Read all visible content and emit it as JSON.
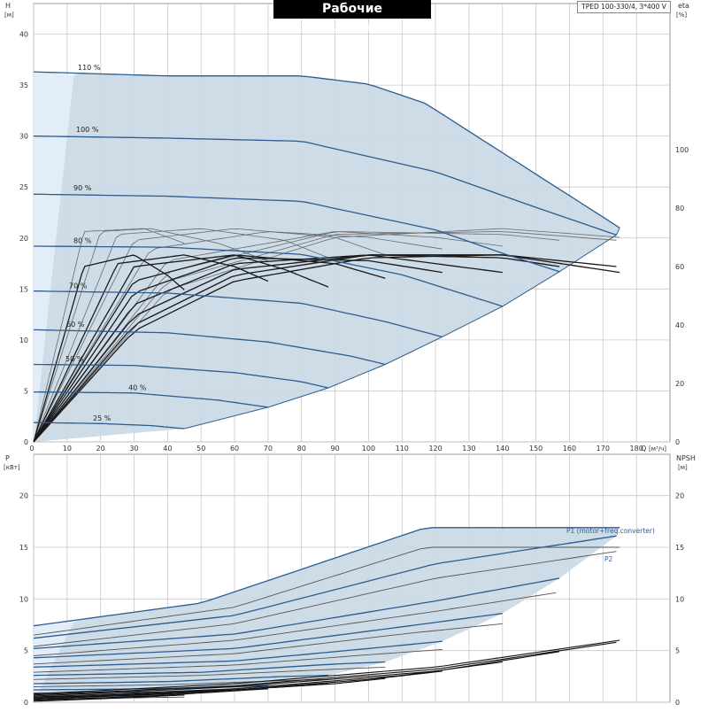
{
  "header": {
    "title": "Рабочие характеристики",
    "model": "TPED 100-330/4, 3*400 V"
  },
  "colors": {
    "region_fill": "#c9d8e6",
    "region_edge": "#2f5f8f",
    "speed_curve": "#2d5c8f",
    "efficiency_curve": "#1a1a1a",
    "grid": "#c8c8c8",
    "label_text": "#2a5d9a"
  },
  "chart_data": [
    {
      "type": "line",
      "name": "head",
      "ylabel_top": "H",
      "yunit": "[м]",
      "xlabel": "Q",
      "xunit": "[м³/ч]",
      "xlim": [
        0,
        190
      ],
      "ylim": [
        0,
        43
      ],
      "xticks": [
        0,
        10,
        20,
        30,
        40,
        50,
        60,
        70,
        80,
        90,
        100,
        110,
        120,
        130,
        140,
        150,
        160,
        170,
        180
      ],
      "yticks": [
        0,
        5,
        10,
        15,
        20,
        25,
        30,
        35,
        40
      ],
      "right_axis": {
        "label": "eta",
        "unit": "[%]",
        "ticks": [
          0,
          20,
          40,
          60,
          80,
          100
        ],
        "lim": [
          0,
          150
        ]
      },
      "curve_labels": [
        "110 %",
        "100 %",
        "90 %",
        "80 %",
        "70 %",
        "60 %",
        "50 %",
        "40 %",
        "25 %"
      ],
      "series": [
        {
          "speed": 110,
          "x": [
            0,
            40,
            80,
            100,
            117,
            175
          ],
          "y": [
            36.3,
            35.9,
            35.9,
            35.1,
            33.2,
            21.0
          ]
        },
        {
          "speed": 100,
          "x": [
            0,
            40,
            80,
            120,
            150,
            174
          ],
          "y": [
            30.0,
            29.8,
            29.5,
            26.5,
            23.0,
            20.3
          ]
        },
        {
          "speed": 90,
          "x": [
            0,
            40,
            80,
            120,
            140,
            157
          ],
          "y": [
            24.3,
            24.1,
            23.6,
            20.8,
            18.5,
            16.7
          ]
        },
        {
          "speed": 80,
          "x": [
            0,
            40,
            80,
            110,
            140
          ],
          "y": [
            19.2,
            19.1,
            18.4,
            16.4,
            13.3
          ]
        },
        {
          "speed": 70,
          "x": [
            0,
            40,
            80,
            105,
            122
          ],
          "y": [
            14.8,
            14.6,
            13.6,
            11.8,
            10.3
          ]
        },
        {
          "speed": 60,
          "x": [
            0,
            40,
            70,
            95,
            105
          ],
          "y": [
            11.0,
            10.7,
            9.8,
            8.4,
            7.6
          ]
        },
        {
          "speed": 50,
          "x": [
            0,
            30,
            60,
            80,
            88
          ],
          "y": [
            7.6,
            7.5,
            6.8,
            5.9,
            5.3
          ]
        },
        {
          "speed": 40,
          "x": [
            0,
            30,
            55,
            70
          ],
          "y": [
            4.9,
            4.8,
            4.1,
            3.4
          ]
        },
        {
          "speed": 25,
          "x": [
            0,
            20,
            35,
            45
          ],
          "y": [
            1.9,
            1.8,
            1.6,
            1.3
          ]
        }
      ],
      "efficiency_curves": [
        {
          "speed": 110,
          "x": [
            0,
            30,
            60,
            100,
            140,
            175
          ],
          "eta": [
            0,
            38,
            55,
            63,
            64,
            58
          ]
        },
        {
          "speed": 100,
          "x": [
            0,
            30,
            60,
            100,
            140,
            174
          ],
          "eta": [
            0,
            40,
            57,
            64,
            64,
            60
          ]
        },
        {
          "speed": 90,
          "x": [
            0,
            30,
            60,
            100,
            140,
            157
          ],
          "eta": [
            0,
            43,
            59,
            64,
            63,
            60
          ]
        },
        {
          "speed": 80,
          "x": [
            0,
            30,
            60,
            100,
            140
          ],
          "eta": [
            0,
            47,
            61,
            64,
            58
          ]
        },
        {
          "speed": 70,
          "x": [
            0,
            30,
            60,
            100,
            122
          ],
          "eta": [
            0,
            51,
            63,
            62,
            58
          ]
        },
        {
          "speed": 60,
          "x": [
            0,
            30,
            60,
            90,
            105
          ],
          "eta": [
            0,
            55,
            64,
            61,
            56
          ]
        },
        {
          "speed": 50,
          "x": [
            0,
            30,
            60,
            75,
            88
          ],
          "eta": [
            0,
            60,
            64,
            59,
            53
          ]
        },
        {
          "speed": 40,
          "x": [
            0,
            25,
            45,
            60,
            70
          ],
          "eta": [
            0,
            61,
            64,
            60,
            55
          ]
        },
        {
          "speed": 25,
          "x": [
            0,
            15,
            30,
            40,
            45
          ],
          "eta": [
            0,
            60,
            64,
            57,
            52
          ]
        }
      ],
      "p1_efficiency_curves": [
        {
          "speed": 110,
          "x": [
            0,
            40,
            90,
            140,
            175
          ],
          "eta": [
            0,
            52,
            70,
            73,
            70
          ]
        },
        {
          "speed": 100,
          "x": [
            0,
            40,
            90,
            140,
            174
          ],
          "eta": [
            0,
            55,
            71,
            72,
            69
          ]
        },
        {
          "speed": 90,
          "x": [
            0,
            40,
            90,
            140,
            157
          ],
          "eta": [
            0,
            58,
            72,
            71,
            69
          ]
        },
        {
          "speed": 80,
          "x": [
            0,
            40,
            90,
            120,
            140
          ],
          "eta": [
            0,
            62,
            72,
            70,
            67
          ]
        },
        {
          "speed": 70,
          "x": [
            0,
            35,
            70,
            100,
            122
          ],
          "eta": [
            0,
            66,
            72,
            70,
            66
          ]
        },
        {
          "speed": 60,
          "x": [
            0,
            30,
            60,
            90,
            105
          ],
          "eta": [
            0,
            69,
            73,
            70,
            64
          ]
        },
        {
          "speed": 50,
          "x": [
            0,
            25,
            50,
            75,
            88
          ],
          "eta": [
            0,
            71,
            73,
            69,
            63
          ]
        },
        {
          "speed": 40,
          "x": [
            0,
            20,
            35,
            55,
            70
          ],
          "eta": [
            0,
            72,
            73,
            68,
            62
          ]
        },
        {
          "speed": 25,
          "x": [
            0,
            15,
            33,
            45
          ],
          "eta": [
            0,
            72,
            73,
            68
          ]
        }
      ]
    },
    {
      "type": "line",
      "name": "power",
      "ylabel_top": "P",
      "yunit": "[кВт]",
      "xlim": [
        0,
        190
      ],
      "ylim": [
        0,
        24
      ],
      "yticks": [
        0,
        5,
        10,
        15,
        20
      ],
      "right_axis": {
        "label": "NPSH",
        "unit": "[м]",
        "ticks": [
          0,
          5,
          10,
          15,
          20
        ],
        "lim": [
          0,
          24
        ]
      },
      "legend": [
        "P1 (motor+freq.converter)",
        "P2"
      ],
      "series_p1": [
        {
          "speed": 110,
          "x": [
            0,
            50,
            117,
            175
          ],
          "y": [
            7.4,
            9.6,
            16.9,
            16.9
          ]
        },
        {
          "speed": 100,
          "x": [
            0,
            60,
            120,
            174
          ],
          "y": [
            6.2,
            8.4,
            13.4,
            16.1
          ]
        },
        {
          "speed": 90,
          "x": [
            0,
            60,
            120,
            157
          ],
          "y": [
            5.2,
            6.6,
            9.8,
            12.0
          ]
        },
        {
          "speed": 80,
          "x": [
            0,
            60,
            110,
            140
          ],
          "y": [
            4.3,
            5.2,
            7.3,
            8.6
          ]
        },
        {
          "speed": 70,
          "x": [
            0,
            60,
            100,
            122
          ],
          "y": [
            3.4,
            4.0,
            5.2,
            5.9
          ]
        },
        {
          "speed": 60,
          "x": [
            0,
            50,
            90,
            105
          ],
          "y": [
            2.6,
            2.9,
            3.7,
            3.9
          ]
        },
        {
          "speed": 50,
          "x": [
            0,
            40,
            75,
            88
          ],
          "y": [
            1.8,
            2.0,
            2.5,
            2.6
          ]
        },
        {
          "speed": 40,
          "x": [
            0,
            35,
            60,
            70
          ],
          "y": [
            1.2,
            1.3,
            1.5,
            1.6
          ]
        },
        {
          "speed": 25,
          "x": [
            0,
            25,
            45
          ],
          "y": [
            0.5,
            0.6,
            0.7
          ]
        }
      ],
      "series_p2": [
        {
          "speed": 110,
          "x": [
            0,
            60,
            117,
            175
          ],
          "y": [
            6.5,
            9.2,
            15.0,
            15.0
          ]
        },
        {
          "speed": 100,
          "x": [
            0,
            60,
            120,
            174
          ],
          "y": [
            5.4,
            7.6,
            12.0,
            14.6
          ]
        },
        {
          "speed": 90,
          "x": [
            0,
            60,
            120,
            156
          ],
          "y": [
            4.5,
            6.0,
            8.8,
            10.6
          ]
        },
        {
          "speed": 80,
          "x": [
            0,
            60,
            110,
            140
          ],
          "y": [
            3.7,
            4.7,
            6.6,
            7.6
          ]
        },
        {
          "speed": 70,
          "x": [
            0,
            60,
            100,
            122
          ],
          "y": [
            2.9,
            3.6,
            4.6,
            5.1
          ]
        },
        {
          "speed": 60,
          "x": [
            0,
            50,
            90,
            105
          ],
          "y": [
            2.2,
            2.6,
            3.2,
            3.4
          ]
        },
        {
          "speed": 50,
          "x": [
            0,
            40,
            75,
            88
          ],
          "y": [
            1.5,
            1.7,
            2.1,
            2.2
          ]
        },
        {
          "speed": 40,
          "x": [
            0,
            35,
            60,
            70
          ],
          "y": [
            0.9,
            1.0,
            1.2,
            1.3
          ]
        },
        {
          "speed": 25,
          "x": [
            0,
            25,
            45
          ],
          "y": [
            0.3,
            0.4,
            0.5
          ]
        }
      ],
      "npsh_curves": [
        {
          "speed": 110,
          "x": [
            0,
            60,
            120,
            175
          ],
          "y": [
            0.8,
            1.8,
            3.4,
            6.0
          ]
        },
        {
          "speed": 100,
          "x": [
            0,
            60,
            120,
            174
          ],
          "y": [
            0.7,
            1.6,
            3.2,
            5.8
          ]
        },
        {
          "speed": 90,
          "x": [
            0,
            60,
            120,
            157
          ],
          "y": [
            0.6,
            1.5,
            3.0,
            4.9
          ]
        },
        {
          "speed": 80,
          "x": [
            0,
            60,
            110,
            140
          ],
          "y": [
            0.5,
            1.3,
            2.6,
            3.9
          ]
        },
        {
          "speed": 70,
          "x": [
            0,
            60,
            100,
            122
          ],
          "y": [
            0.4,
            1.2,
            2.2,
            3.0
          ]
        },
        {
          "speed": 60,
          "x": [
            0,
            50,
            90,
            105
          ],
          "y": [
            0.3,
            1.0,
            1.8,
            2.3
          ]
        },
        {
          "speed": 50,
          "x": [
            0,
            40,
            75,
            88
          ],
          "y": [
            0.3,
            0.8,
            1.5,
            1.8
          ]
        },
        {
          "speed": 40,
          "x": [
            0,
            35,
            60,
            70
          ],
          "y": [
            0.2,
            0.6,
            1.1,
            1.3
          ]
        },
        {
          "speed": 25,
          "x": [
            0,
            25,
            45
          ],
          "y": [
            0.1,
            0.4,
            0.7
          ]
        }
      ]
    }
  ]
}
